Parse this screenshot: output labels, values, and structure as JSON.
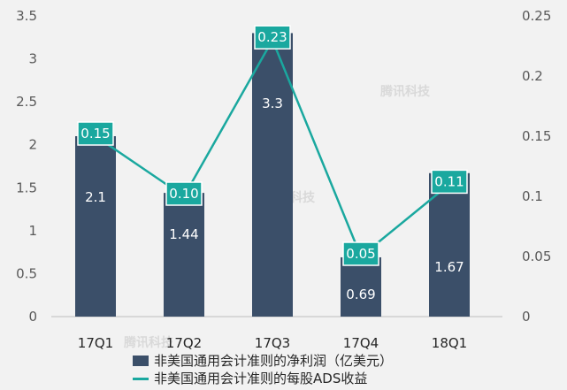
{
  "chart_data": {
    "type": "bar",
    "categories": [
      "17Q1",
      "17Q2",
      "17Q3",
      "17Q4",
      "18Q1"
    ],
    "series": [
      {
        "name": "非美国通用会计准则的净利润（亿美元）",
        "type": "bar",
        "axis": "left",
        "values": [
          2.1,
          1.44,
          3.3,
          0.69,
          1.67
        ],
        "labels": [
          "2.1",
          "1.44",
          "3.3",
          "0.69",
          "1.67"
        ]
      },
      {
        "name": "非美国通用会计准则的每股ADS收益",
        "type": "line",
        "axis": "right",
        "values": [
          0.15,
          0.1,
          0.23,
          0.05,
          0.11
        ],
        "labels": [
          "0.15",
          "0.10",
          "0.23",
          "0.05",
          "0.11"
        ]
      }
    ],
    "y_left": {
      "ylim": [
        0,
        3.5
      ],
      "ticks": [
        "0",
        "0.5",
        "1",
        "1.5",
        "2",
        "2.5",
        "3",
        "3.5"
      ]
    },
    "y_right": {
      "ylim": [
        0,
        0.25
      ],
      "ticks": [
        "0",
        "0.05",
        "0.1",
        "0.15",
        "0.2",
        "0.25"
      ]
    },
    "grid": false,
    "legend": "bottom",
    "colors": {
      "bar": "#3b4f69",
      "line": "#1aa89f",
      "label_box": "#1aa89f"
    }
  },
  "watermark": "腾讯科技"
}
